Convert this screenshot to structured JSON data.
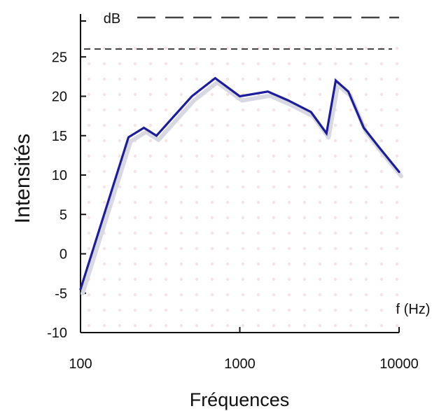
{
  "chart_data": {
    "type": "line",
    "title": "",
    "xlabel": "Fréquences",
    "ylabel": "Intensités",
    "x_unit_label": "f (Hz)",
    "y_unit_label": "dB",
    "x_scale": "log",
    "xlim": [
      100,
      10000
    ],
    "ylim": [
      -10,
      30
    ],
    "x_ticks": [
      100,
      1000,
      10000
    ],
    "x_tick_labels": [
      "100",
      "1000",
      "10000"
    ],
    "y_ticks": [
      -10,
      -5,
      0,
      5,
      10,
      15,
      20,
      25
    ],
    "y_tick_labels": [
      "-10",
      "-5",
      "0",
      "5",
      "10",
      "15",
      "20",
      "25"
    ],
    "reference_lines": [
      30,
      26
    ],
    "grid": true,
    "colors": {
      "line": "#1c1c9c",
      "shadow": "#d8d8e2",
      "grid_dot": "#f3e3e3",
      "reference": "#444444"
    },
    "series": [
      {
        "x": [
          100,
          200,
          250,
          300,
          500,
          700,
          1000,
          1500,
          2000,
          2800,
          3500,
          4000,
          4800,
          6000,
          7500,
          10000
        ],
        "values": [
          -4.5,
          14.8,
          16.0,
          15.0,
          20.0,
          22.3,
          20.0,
          20.6,
          19.5,
          18.0,
          15.3,
          22.0,
          20.6,
          16.0,
          13.5,
          10.4
        ]
      }
    ]
  }
}
